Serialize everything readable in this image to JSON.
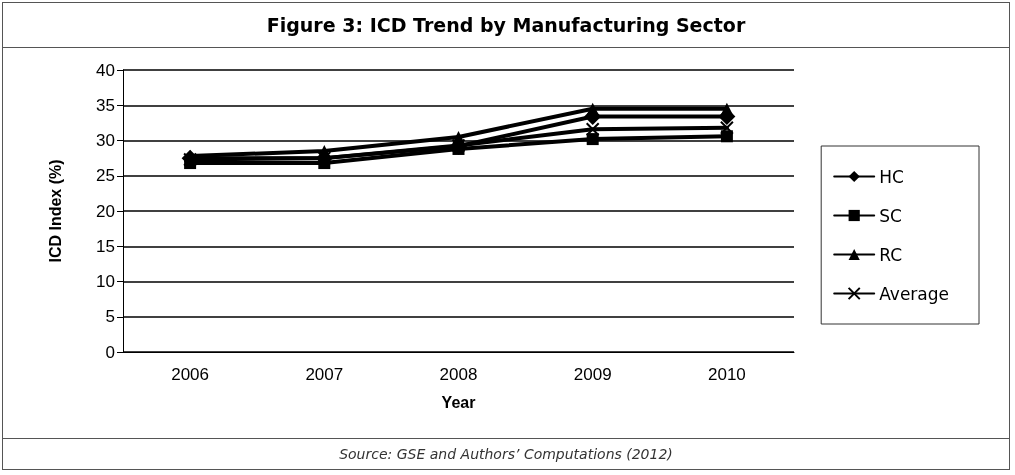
{
  "chart_data": {
    "type": "line",
    "title": "Figure 3: ICD Trend by Manufacturing Sector",
    "xlabel": "Year",
    "ylabel": "ICD Index (%)",
    "categories": [
      "2006",
      "2007",
      "2008",
      "2009",
      "2010"
    ],
    "series": [
      {
        "name": "HC",
        "color": "#000000",
        "marker": "diamond",
        "values": [
          27.5,
          27.5,
          29.2,
          33.4,
          33.4
        ]
      },
      {
        "name": "SC",
        "color": "#000000",
        "marker": "square",
        "values": [
          26.8,
          26.8,
          28.8,
          30.2,
          30.6
        ]
      },
      {
        "name": "RC",
        "color": "#000000",
        "marker": "triangle",
        "values": [
          27.8,
          28.5,
          30.5,
          34.5,
          34.5
        ]
      },
      {
        "name": "Average",
        "color": "#000000",
        "marker": "cross",
        "values": [
          27.3,
          27.5,
          29.3,
          31.6,
          31.8
        ]
      }
    ],
    "ylim": [
      0,
      40
    ],
    "yticks": [
      0,
      5,
      10,
      15,
      20,
      25,
      30,
      35,
      40
    ],
    "grid": "y",
    "legend": "right",
    "annotations": [
      "Source: GSE and Authors’ Computations (2012)"
    ]
  }
}
